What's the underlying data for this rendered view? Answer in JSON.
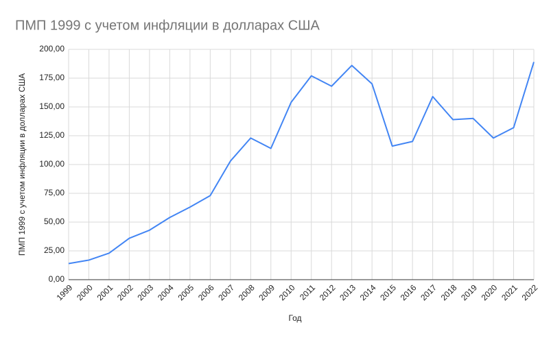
{
  "chart_data": {
    "type": "line",
    "title": "ПМП 1999 с учетом инфляции в долларах США",
    "x_label": "Год",
    "y_label": "ПМП 1999 с учетом инфляции в долларах США",
    "categories": [
      "1999",
      "2000",
      "2001",
      "2002",
      "2003",
      "2004",
      "2005",
      "2006",
      "2007",
      "2008",
      "2009",
      "2010",
      "2011",
      "2012",
      "2013",
      "2014",
      "2015",
      "2016",
      "2017",
      "2018",
      "2019",
      "2020",
      "2021",
      "2022"
    ],
    "series": [
      {
        "name": "ПМП 1999 с учетом инфляции в долларах США",
        "color": "#4285f4",
        "values": [
          14,
          17,
          23,
          36,
          43,
          54,
          63,
          73,
          103,
          123,
          114,
          154,
          177,
          168,
          186,
          170,
          116,
          120,
          159,
          139,
          140,
          123,
          132,
          189
        ]
      }
    ],
    "ylim": [
      0,
      200
    ],
    "yticks": [
      {
        "value": 0,
        "label": "0,00"
      },
      {
        "value": 25,
        "label": "25,00"
      },
      {
        "value": 50,
        "label": "50,00"
      },
      {
        "value": 75,
        "label": "75,00"
      },
      {
        "value": 100,
        "label": "100,00"
      },
      {
        "value": 125,
        "label": "125,00"
      },
      {
        "value": 150,
        "label": "150,00"
      },
      {
        "value": 175,
        "label": "175,00"
      },
      {
        "value": 200,
        "label": "200,00"
      }
    ],
    "grid": true
  }
}
